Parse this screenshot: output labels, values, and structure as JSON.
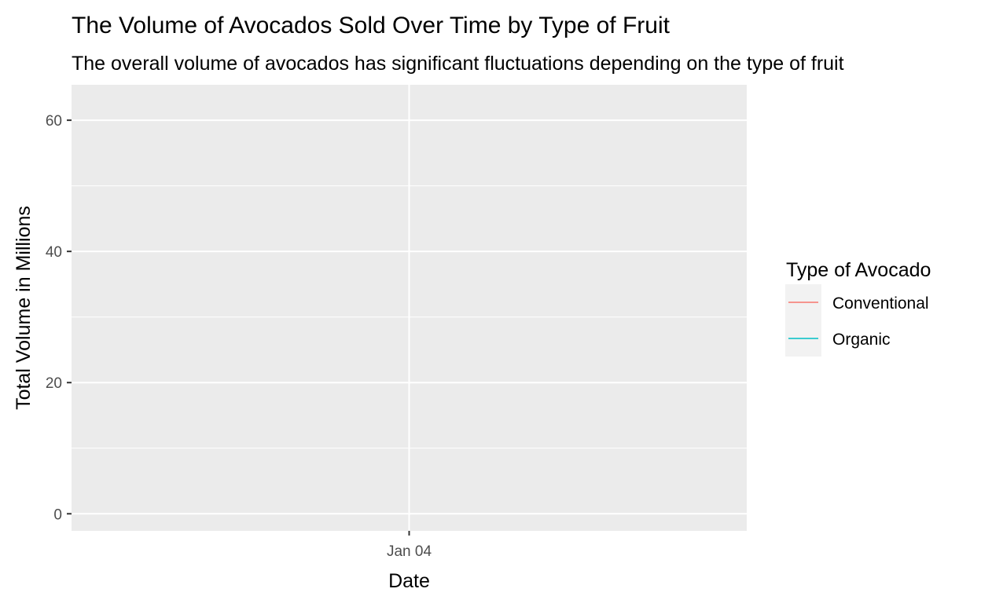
{
  "chart_data": {
    "type": "line",
    "title": "The Volume of Avocados Sold Over Time by Type of Fruit",
    "subtitle": "The overall volume of avocados has significant fluctuations depending on the type of fruit",
    "xlabel": "Date",
    "ylabel": "Total Volume in Millions",
    "x_ticks": [
      "Jan 04"
    ],
    "y_ticks": [
      0,
      20,
      40,
      60
    ],
    "ylim": [
      -2.6,
      65.4
    ],
    "grid": true,
    "legend": {
      "title": "Type of Avocado",
      "position": "right"
    },
    "series": [
      {
        "name": "Conventional",
        "color": "#F8766D",
        "x": [],
        "values": []
      },
      {
        "name": "Organic",
        "color": "#00BFC4",
        "x": [],
        "values": []
      }
    ]
  },
  "colors": {
    "panel_background": "#EBEBEB",
    "gridline": "#FFFFFF",
    "tick_text": "#4D4D4D",
    "axis_title": "#000000"
  }
}
